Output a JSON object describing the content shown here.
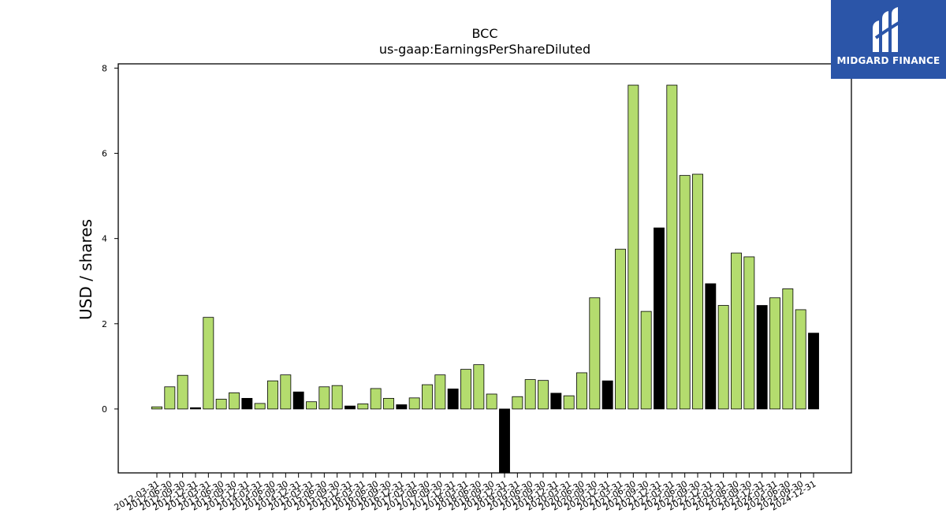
{
  "logo": {
    "text": "MIDGARD FINANCE"
  },
  "colors": {
    "positive": "#b4dc6e",
    "annual": "#000000",
    "edge": "#000000",
    "logo_bg": "#2b55a8"
  },
  "chart_data": {
    "type": "bar",
    "title": "BCC",
    "subtitle": "us-gaap:EarningsPerShareDiluted",
    "xlabel": "",
    "ylabel": "USD / shares",
    "ylim": [
      -1.5,
      8.1
    ],
    "yticks": [
      0,
      2,
      4,
      6,
      8
    ],
    "grid": false,
    "categories": [
      "2012-03-31",
      "2012-06-30",
      "2012-09-30",
      "2012-12-31",
      "2013-03-31",
      "2013-06-30",
      "2013-09-30",
      "2013-12-31",
      "2014-03-31",
      "2014-06-30",
      "2014-09-30",
      "2014-12-31",
      "2015-03-31",
      "2015-06-30",
      "2015-09-30",
      "2015-12-31",
      "2016-03-31",
      "2016-06-30",
      "2016-09-30",
      "2016-12-31",
      "2017-03-31",
      "2017-06-30",
      "2017-09-30",
      "2017-12-31",
      "2018-03-31",
      "2018-06-30",
      "2018-09-30",
      "2018-12-31",
      "2019-03-31",
      "2019-06-30",
      "2019-09-30",
      "2019-12-31",
      "2020-03-31",
      "2020-06-30",
      "2020-09-30",
      "2020-12-31",
      "2021-03-31",
      "2021-06-30",
      "2021-09-30",
      "2021-12-31",
      "2022-03-31",
      "2022-06-30",
      "2022-09-30",
      "2022-12-31",
      "2023-03-31",
      "2023-06-30",
      "2023-09-30",
      "2023-12-31",
      "2024-03-31",
      "2024-06-30",
      "2024-09-30",
      "2024-12-31"
    ],
    "values": [
      0.05,
      0.52,
      0.79,
      0.03,
      2.15,
      0.23,
      0.38,
      0.25,
      0.13,
      0.66,
      0.8,
      0.4,
      0.17,
      0.52,
      0.55,
      0.07,
      0.12,
      0.48,
      0.25,
      0.1,
      0.26,
      0.57,
      0.8,
      0.47,
      0.93,
      1.04,
      0.35,
      -1.5,
      0.29,
      0.69,
      0.67,
      0.37,
      0.31,
      0.85,
      2.61,
      0.66,
      3.75,
      7.6,
      2.29,
      4.25,
      7.6,
      5.48,
      5.51,
      2.94,
      2.43,
      3.66,
      3.57,
      2.43,
      2.61,
      2.82,
      2.33,
      1.78
    ],
    "annual_flags": [
      0,
      0,
      0,
      1,
      0,
      0,
      0,
      1,
      0,
      0,
      0,
      1,
      0,
      0,
      0,
      1,
      0,
      0,
      0,
      1,
      0,
      0,
      0,
      1,
      0,
      0,
      0,
      1,
      0,
      0,
      0,
      1,
      0,
      0,
      0,
      1,
      0,
      0,
      0,
      1,
      0,
      0,
      0,
      1,
      0,
      0,
      0,
      1,
      0,
      0,
      0,
      1
    ]
  }
}
